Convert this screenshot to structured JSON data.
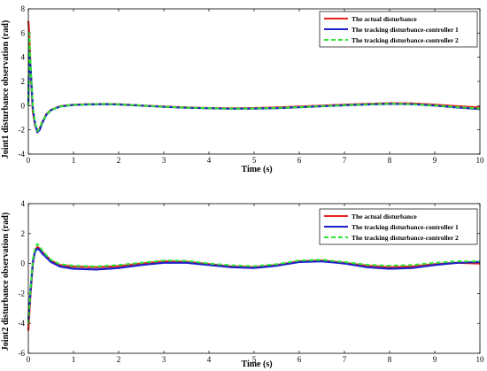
{
  "chart_data": [
    {
      "type": "line",
      "title": "",
      "xlabel": "Time (s)",
      "ylabel": "Joint1 disturbance observation (rad)",
      "xlim": [
        0,
        10
      ],
      "ylim": [
        -4,
        8
      ],
      "xticks": [
        "0",
        "1",
        "2",
        "3",
        "4",
        "5",
        "6",
        "7",
        "8",
        "9",
        "10"
      ],
      "yticks": [
        "-4",
        "-2",
        "0",
        "2",
        "4",
        "6",
        "8"
      ],
      "legend_position": "top-right",
      "grid": false,
      "series": [
        {
          "name": "The actual disturbance",
          "color": "#e8231d",
          "style": "solid",
          "x": [
            0,
            0.02,
            0.05,
            0.1,
            0.15,
            0.2,
            0.25,
            0.3,
            0.4,
            0.5,
            0.7,
            1.0,
            1.3,
            1.7,
            2.0,
            2.5,
            3.0,
            3.5,
            4.0,
            4.5,
            5.0,
            5.5,
            6.0,
            6.5,
            7.0,
            7.5,
            8.0,
            8.5,
            9.0,
            9.5,
            10.0
          ],
          "y": [
            7.0,
            6.0,
            3.0,
            -0.5,
            -1.6,
            -2.1,
            -1.9,
            -1.4,
            -0.7,
            -0.35,
            -0.05,
            0.08,
            0.12,
            0.15,
            0.12,
            0.02,
            -0.08,
            -0.15,
            -0.2,
            -0.22,
            -0.2,
            -0.15,
            -0.08,
            0.0,
            0.08,
            0.15,
            0.2,
            0.18,
            0.08,
            -0.05,
            -0.15
          ]
        },
        {
          "name": "The tracking disturbance-controller 1",
          "color": "#1f1fcc",
          "style": "solid",
          "x": [
            0,
            0.02,
            0.05,
            0.1,
            0.15,
            0.2,
            0.25,
            0.3,
            0.4,
            0.5,
            0.7,
            1.0,
            1.3,
            1.7,
            2.0,
            2.5,
            3.0,
            3.5,
            4.0,
            4.5,
            5.0,
            5.5,
            6.0,
            6.5,
            7.0,
            7.5,
            8.0,
            8.5,
            9.0,
            9.5,
            10.0
          ],
          "y": [
            0.0,
            4.5,
            3.2,
            -0.2,
            -1.5,
            -2.2,
            -2.0,
            -1.5,
            -0.75,
            -0.38,
            -0.07,
            0.06,
            0.1,
            0.13,
            0.1,
            0.0,
            -0.1,
            -0.17,
            -0.22,
            -0.25,
            -0.24,
            -0.2,
            -0.13,
            -0.05,
            0.03,
            0.1,
            0.15,
            0.12,
            0.0,
            -0.15,
            -0.28
          ]
        },
        {
          "name": "The tracking disturbance-controller 2",
          "color": "#2ee52e",
          "style": "dashed",
          "x": [
            0,
            0.02,
            0.05,
            0.1,
            0.15,
            0.2,
            0.25,
            0.3,
            0.4,
            0.5,
            0.7,
            1.0,
            1.3,
            1.7,
            2.0,
            2.5,
            3.0,
            3.5,
            4.0,
            4.5,
            5.0,
            5.5,
            6.0,
            6.5,
            7.0,
            7.5,
            8.0,
            8.5,
            9.0,
            9.5,
            10.0
          ],
          "y": [
            0.0,
            6.0,
            3.4,
            -0.1,
            -1.4,
            -2.1,
            -1.9,
            -1.4,
            -0.72,
            -0.36,
            -0.06,
            0.07,
            0.11,
            0.14,
            0.11,
            0.01,
            -0.09,
            -0.16,
            -0.21,
            -0.24,
            -0.23,
            -0.19,
            -0.12,
            -0.04,
            0.04,
            0.11,
            0.16,
            0.13,
            0.02,
            -0.12,
            -0.24
          ]
        }
      ]
    },
    {
      "type": "line",
      "title": "",
      "xlabel": "Time (s)",
      "ylabel": "Joint2 disturbance observation (rad)",
      "xlim": [
        0,
        10
      ],
      "ylim": [
        -6,
        4
      ],
      "xticks": [
        "0",
        "1",
        "2",
        "3",
        "4",
        "5",
        "6",
        "7",
        "8",
        "9",
        "10"
      ],
      "yticks": [
        "-6",
        "-4",
        "-2",
        "0",
        "2",
        "4"
      ],
      "legend_position": "top-right",
      "grid": false,
      "series": [
        {
          "name": "The actual disturbance",
          "color": "#e8231d",
          "style": "solid",
          "x": [
            0,
            0.05,
            0.1,
            0.15,
            0.2,
            0.25,
            0.3,
            0.4,
            0.5,
            0.7,
            1.0,
            1.5,
            2.0,
            2.5,
            3.0,
            3.5,
            4.0,
            4.5,
            5.0,
            5.5,
            6.0,
            6.5,
            7.0,
            7.5,
            8.0,
            8.5,
            9.0,
            9.5,
            10.0
          ],
          "y": [
            -4.5,
            -2.0,
            0.0,
            0.9,
            1.1,
            1.0,
            0.8,
            0.5,
            0.2,
            -0.1,
            -0.2,
            -0.25,
            -0.18,
            0.0,
            0.15,
            0.12,
            -0.05,
            -0.2,
            -0.25,
            -0.1,
            0.15,
            0.2,
            0.05,
            -0.15,
            -0.25,
            -0.2,
            -0.05,
            0.05,
            0.0
          ]
        },
        {
          "name": "The tracking disturbance-controller 1",
          "color": "#1f1fcc",
          "style": "solid",
          "x": [
            0,
            0.05,
            0.1,
            0.15,
            0.2,
            0.25,
            0.3,
            0.4,
            0.5,
            0.7,
            1.0,
            1.5,
            2.0,
            2.5,
            3.0,
            3.5,
            4.0,
            4.5,
            5.0,
            5.5,
            6.0,
            6.5,
            7.0,
            7.5,
            8.0,
            8.5,
            9.0,
            9.5,
            10.0
          ],
          "y": [
            -3.8,
            -1.8,
            0.1,
            0.8,
            1.0,
            0.9,
            0.7,
            0.4,
            0.1,
            -0.2,
            -0.35,
            -0.4,
            -0.3,
            -0.1,
            0.05,
            0.05,
            -0.1,
            -0.25,
            -0.3,
            -0.15,
            0.1,
            0.15,
            0.0,
            -0.25,
            -0.35,
            -0.3,
            -0.1,
            0.05,
            0.1
          ]
        },
        {
          "name": "The tracking disturbance-controller 2",
          "color": "#2ee52e",
          "style": "dashed",
          "x": [
            0,
            0.05,
            0.1,
            0.15,
            0.2,
            0.25,
            0.3,
            0.4,
            0.5,
            0.7,
            1.0,
            1.5,
            2.0,
            2.5,
            3.0,
            3.5,
            4.0,
            4.5,
            5.0,
            5.5,
            6.0,
            6.5,
            7.0,
            7.5,
            8.0,
            8.5,
            9.0,
            9.5,
            10.0
          ],
          "y": [
            -4.0,
            -1.7,
            0.3,
            1.0,
            1.3,
            1.15,
            0.9,
            0.55,
            0.25,
            -0.05,
            -0.15,
            -0.2,
            -0.1,
            0.05,
            0.2,
            0.18,
            0.0,
            -0.12,
            -0.18,
            -0.05,
            0.2,
            0.25,
            0.1,
            -0.08,
            -0.15,
            -0.1,
            0.05,
            0.15,
            0.15
          ]
        }
      ]
    }
  ]
}
